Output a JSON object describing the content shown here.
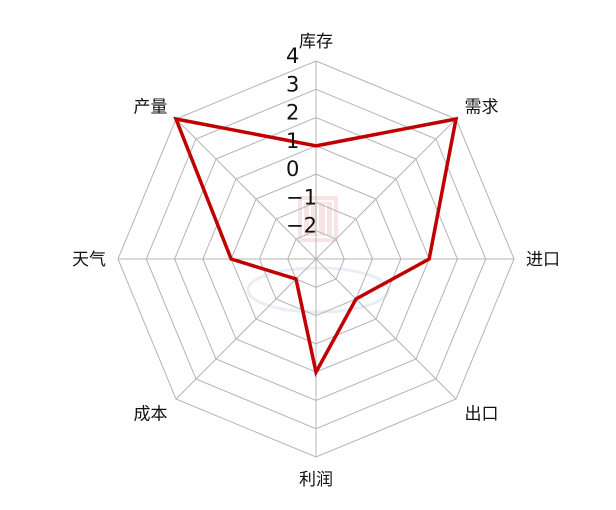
{
  "chart_data": {
    "type": "radar",
    "categories": [
      "库存",
      "需求",
      "进口",
      "出口",
      "利润",
      "成本",
      "天气",
      "产量"
    ],
    "series": [
      {
        "values": [
          1,
          4,
          1,
          -1,
          1,
          -2,
          0,
          4
        ],
        "color": "#c00000"
      }
    ],
    "r_ticks": [
      4,
      3,
      2,
      1,
      0,
      -1,
      -2
    ],
    "r_range": [
      -3,
      4
    ],
    "grid": true,
    "grid_shape": "polygon",
    "grid_color": "#b4b4b4",
    "watermark": "MyStudy.com"
  }
}
